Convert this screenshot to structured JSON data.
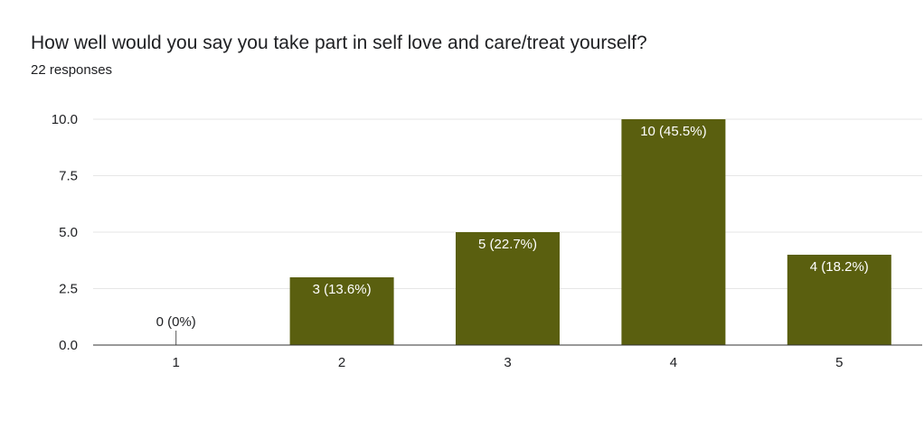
{
  "header": {
    "title": "How well would you say you take part in self love and care/treat yourself?",
    "responses": "22 responses"
  },
  "colors": {
    "bar": "#5a5f0f",
    "grid": "#e6e6e6",
    "axis": "#333333",
    "label_inside": "#ffffff",
    "label_outside": "#202124"
  },
  "chart_data": {
    "type": "bar",
    "categories": [
      "1",
      "2",
      "3",
      "4",
      "5"
    ],
    "values": [
      0,
      3,
      5,
      10,
      4
    ],
    "data_labels": [
      "0 (0%)",
      "3 (13.6%)",
      "5 (22.7%)",
      "10 (45.5%)",
      "4 (18.2%)"
    ],
    "yticks": [
      "0.0",
      "2.5",
      "5.0",
      "7.5",
      "10.0"
    ],
    "ytick_values": [
      0,
      2.5,
      5,
      7.5,
      10
    ],
    "ylim": [
      0,
      10
    ],
    "xlabel": "",
    "ylabel": "",
    "grid": true,
    "legend": "none"
  }
}
